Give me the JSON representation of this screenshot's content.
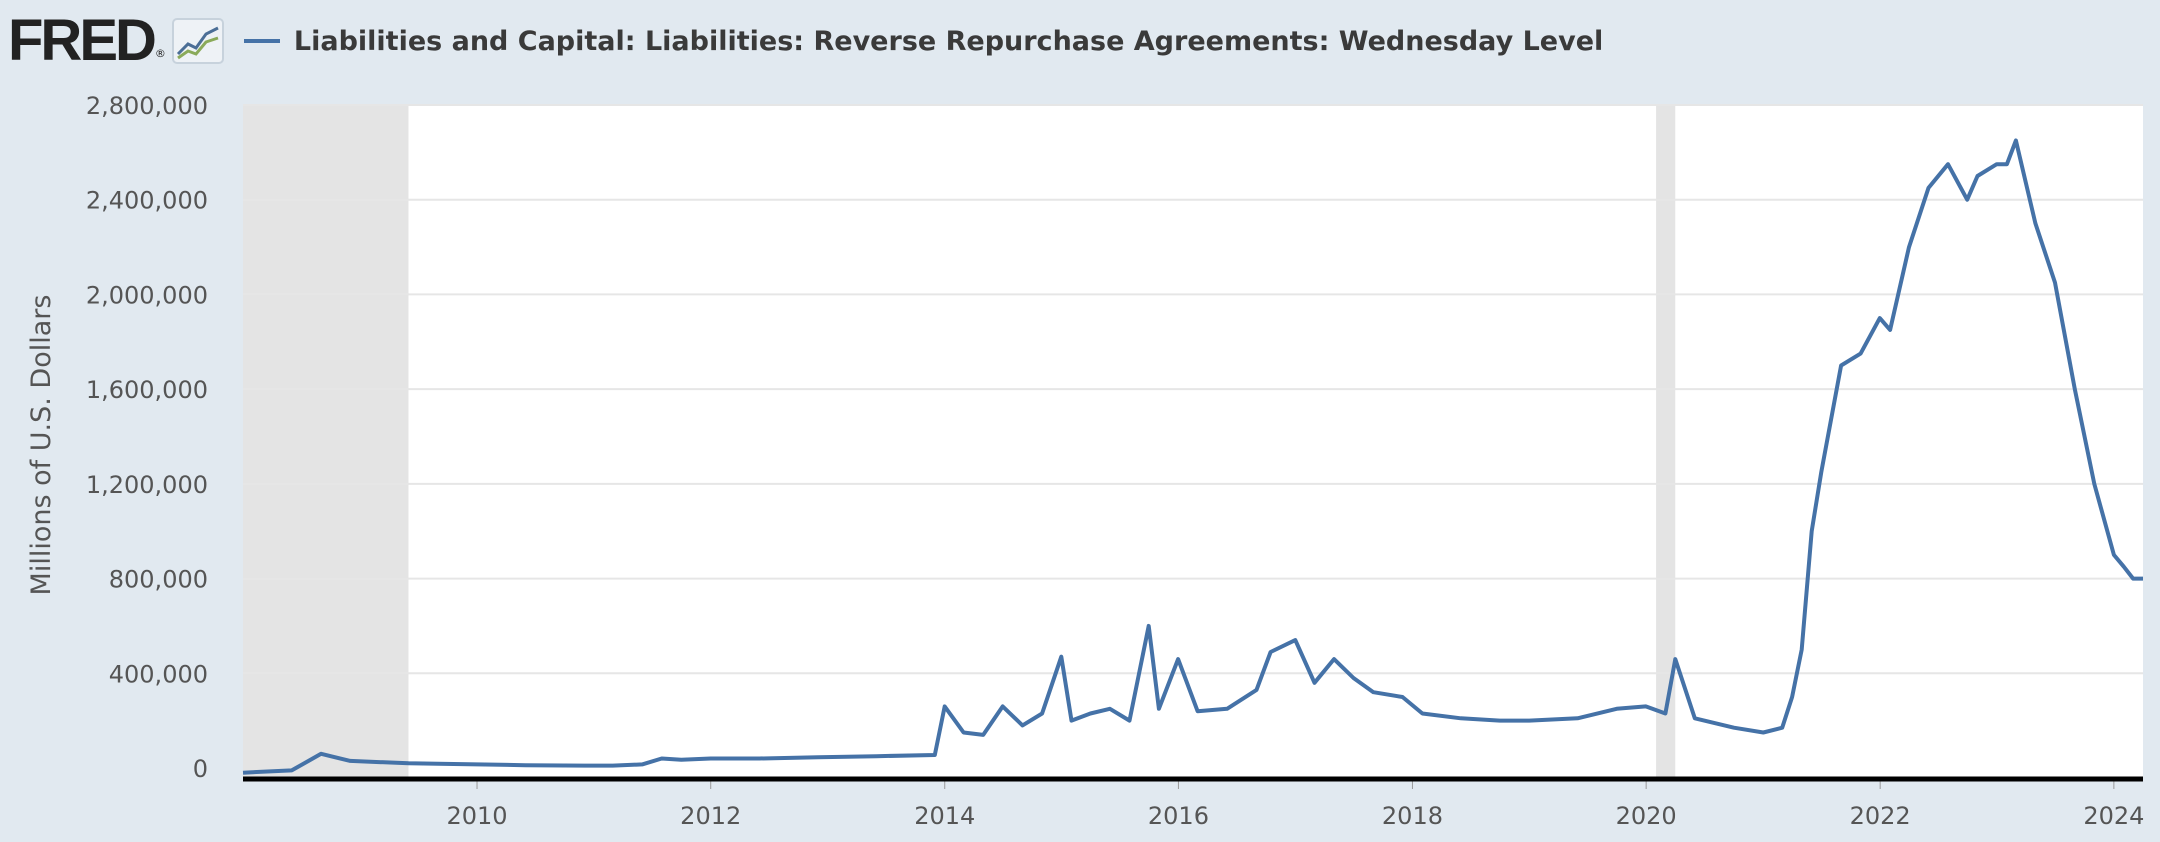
{
  "header": {
    "logo_text": "FRED",
    "logo_reg": "®",
    "series_title": "Liabilities and Capital: Liabilities: Reverse Repurchase Agreements: Wednesday Level"
  },
  "colors": {
    "background": "#e1e9f0",
    "plot": "#ffffff",
    "series": "#4572a7",
    "recession": "#e4e4e4",
    "grid": "#e6e6e6"
  },
  "chart_data": {
    "type": "line",
    "title": "Liabilities and Capital: Liabilities: Reverse Repurchase Agreements: Wednesday Level",
    "ylabel": "Millions of U.S. Dollars",
    "xlabel": "",
    "xlim": [
      "2008-01-01",
      "2024-04-01"
    ],
    "ylim": [
      0,
      2800000
    ],
    "grid": true,
    "x_ticks": [
      "2010",
      "2012",
      "2014",
      "2016",
      "2018",
      "2020",
      "2022",
      "2024"
    ],
    "y_ticks": [
      "0",
      "400,000",
      "800,000",
      "1,200,000",
      "1,600,000",
      "2,000,000",
      "2,400,000",
      "2,800,000"
    ],
    "recessions": [
      {
        "start": "2008-01-01",
        "end": "2009-06-01"
      },
      {
        "start": "2020-02-01",
        "end": "2020-04-01"
      }
    ],
    "series": [
      {
        "name": "Liabilities and Capital: Liabilities: Reverse Repurchase Agreements: Wednesday Level",
        "x": [
          "2008-01-01",
          "2008-06-01",
          "2008-09-01",
          "2008-10-01",
          "2008-12-01",
          "2009-03-01",
          "2009-06-01",
          "2009-09-01",
          "2010-01-01",
          "2010-06-01",
          "2010-12-01",
          "2011-03-01",
          "2011-06-01",
          "2011-08-01",
          "2011-10-01",
          "2012-01-01",
          "2012-06-01",
          "2012-12-01",
          "2013-06-01",
          "2013-12-01",
          "2014-01-01",
          "2014-03-01",
          "2014-05-01",
          "2014-07-01",
          "2014-09-01",
          "2014-11-01",
          "2014-12-31",
          "2015-02-01",
          "2015-04-01",
          "2015-06-01",
          "2015-08-01",
          "2015-09-30",
          "2015-11-01",
          "2015-12-31",
          "2016-03-01",
          "2016-06-01",
          "2016-09-01",
          "2016-10-15",
          "2016-12-31",
          "2017-03-01",
          "2017-05-01",
          "2017-07-01",
          "2017-09-01",
          "2017-12-01",
          "2018-02-01",
          "2018-06-01",
          "2018-10-01",
          "2019-01-01",
          "2019-06-01",
          "2019-10-01",
          "2019-12-31",
          "2020-03-01",
          "2020-04-01",
          "2020-06-01",
          "2020-10-01",
          "2021-01-01",
          "2021-03-01",
          "2021-04-01",
          "2021-05-01",
          "2021-06-01",
          "2021-07-01",
          "2021-09-01",
          "2021-11-01",
          "2021-12-31",
          "2022-02-01",
          "2022-04-01",
          "2022-06-01",
          "2022-08-01",
          "2022-09-30",
          "2022-11-01",
          "2022-12-31",
          "2023-02-01",
          "2023-03-01",
          "2023-05-01",
          "2023-07-01",
          "2023-09-01",
          "2023-11-01",
          "2024-01-01",
          "2024-02-01",
          "2024-03-01",
          "2024-04-01"
        ],
        "values": [
          -20000,
          -10000,
          60000,
          50000,
          30000,
          25000,
          20000,
          18000,
          15000,
          12000,
          10000,
          10000,
          15000,
          40000,
          35000,
          40000,
          40000,
          45000,
          50000,
          55000,
          260000,
          150000,
          140000,
          260000,
          180000,
          230000,
          470000,
          200000,
          230000,
          250000,
          200000,
          600000,
          250000,
          460000,
          240000,
          250000,
          330000,
          490000,
          540000,
          360000,
          460000,
          380000,
          320000,
          300000,
          230000,
          210000,
          200000,
          200000,
          210000,
          250000,
          260000,
          230000,
          460000,
          210000,
          170000,
          150000,
          170000,
          300000,
          500000,
          1000000,
          1250000,
          1700000,
          1750000,
          1900000,
          1850000,
          2200000,
          2450000,
          2550000,
          2400000,
          2500000,
          2550000,
          2550000,
          2650000,
          2300000,
          2050000,
          1600000,
          1200000,
          900000,
          850000,
          800000,
          800000
        ]
      }
    ]
  }
}
